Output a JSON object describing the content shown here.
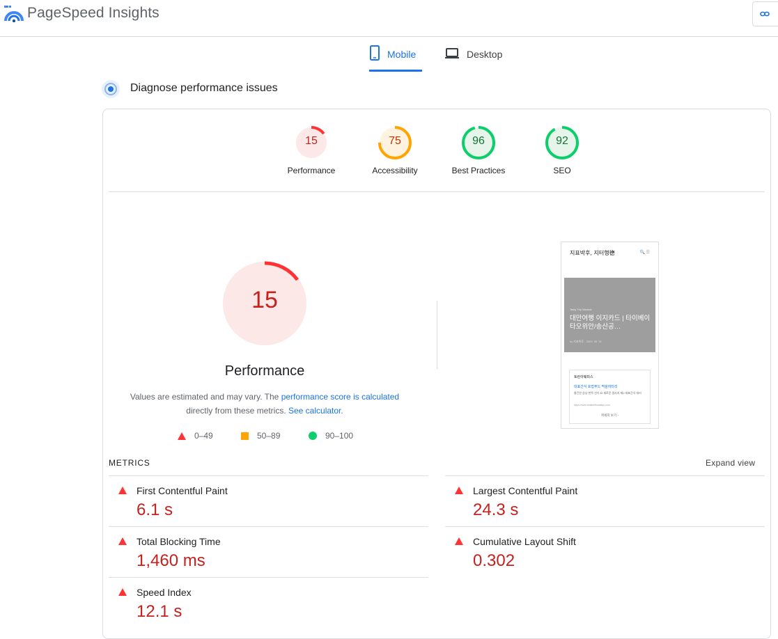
{
  "app": {
    "brand": "PageSpeed Insights"
  },
  "tabs": [
    {
      "label": "Mobile",
      "selected": true
    },
    {
      "label": "Desktop",
      "selected": false
    }
  ],
  "section": {
    "title": "Diagnose performance issues"
  },
  "categories": [
    {
      "label": "Performance",
      "score": 15,
      "color": "#ff3333",
      "track": "#fce8e6",
      "text": "#c5221f"
    },
    {
      "label": "Accessibility",
      "score": 75,
      "color": "#ffa400",
      "track": "#fff3e0",
      "text": "#c33300"
    },
    {
      "label": "Best Practices",
      "score": 96,
      "color": "#0cce6b",
      "track": "#e6f4ea",
      "text": "#137333"
    },
    {
      "label": "SEO",
      "score": 92,
      "color": "#0cce6b",
      "track": "#e6f4ea",
      "text": "#137333"
    }
  ],
  "performance": {
    "score": 15,
    "title": "Performance",
    "note_prefix": "Values are estimated and may vary. The",
    "note_link": "performance score is calculated",
    "note_middle": "directly from these metrics.",
    "note_link2": "See calculator."
  },
  "legend": [
    {
      "range": "0–49",
      "shape": "triangle",
      "color": "#ff3333"
    },
    {
      "range": "50–89",
      "shape": "square",
      "color": "#ffa400"
    },
    {
      "range": "90–100",
      "shape": "circle",
      "color": "#0cce6b"
    }
  ],
  "screenshot": {
    "site_title": "지표박후, 지터행德",
    "icons": "🔍 ☰",
    "category": "Tasty Trip Manual",
    "headline": "대만여행 이지카드 | 타이베이 타오위안/송산공…",
    "meta": "by 지표박후 · 2023. 05. 31",
    "box_title": "토린아웨피스",
    "box_link": "대표간식 호접푸드 먹을여타리",
    "box_text": "물건은 상냥 한목 선다 요 새로운 생사지 재2 대표간식 대리",
    "box_url": "https://www.sealtrellbusatiqu.com",
    "box_more": "파세히 보기 ›"
  },
  "metrics": {
    "label": "METRICS",
    "expand": "Expand view",
    "items": [
      {
        "name": "First Contentful Paint",
        "value": "6.1 s"
      },
      {
        "name": "Largest Contentful Paint",
        "value": "24.3 s"
      },
      {
        "name": "Total Blocking Time",
        "value": "1,460 ms"
      },
      {
        "name": "Cumulative Layout Shift",
        "value": "0.302"
      },
      {
        "name": "Speed Index",
        "value": "12.1 s"
      }
    ]
  }
}
